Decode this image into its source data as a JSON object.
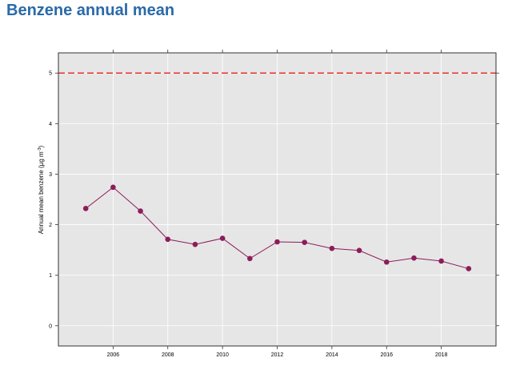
{
  "page": {
    "title": "Benzene annual mean"
  },
  "colors": {
    "title": "#2a6aa8",
    "panel": "#e6e6e6",
    "grid": "#ffffff",
    "series": "#8b1d5a",
    "limit_line": "#e8312e",
    "axis": "#333333"
  },
  "chart_data": {
    "type": "line",
    "title": "",
    "xlabel": "",
    "ylabel": "Annual mean benzene (µg m",
    "ylabel_superscript": "-3",
    "ylabel_suffix": ")",
    "xlim": [
      2004,
      2020
    ],
    "ylim": [
      -0.4,
      5.4
    ],
    "x_ticks": [
      2006,
      2008,
      2010,
      2012,
      2014,
      2016,
      2018
    ],
    "y_ticks": [
      0,
      1,
      2,
      3,
      4,
      5
    ],
    "grid": true,
    "limit_value": 5,
    "x": [
      2005,
      2006,
      2007,
      2008,
      2009,
      2010,
      2011,
      2012,
      2013,
      2014,
      2015,
      2016,
      2017,
      2018,
      2019
    ],
    "values": [
      2.32,
      2.74,
      2.27,
      1.71,
      1.61,
      1.73,
      1.33,
      1.66,
      1.65,
      1.53,
      1.49,
      1.26,
      1.34,
      1.28,
      1.13
    ]
  }
}
